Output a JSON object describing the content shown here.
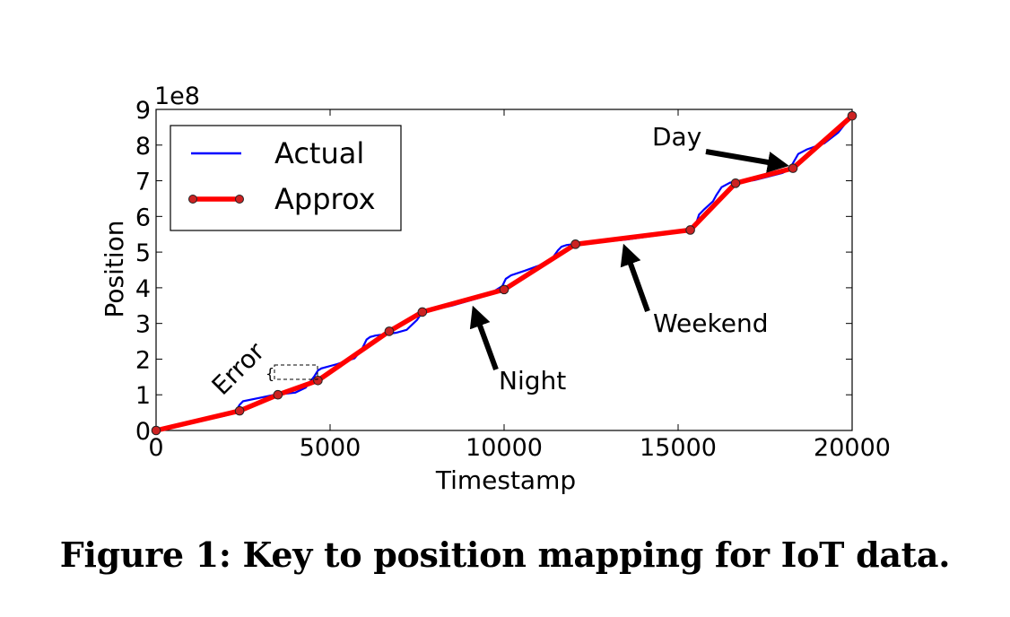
{
  "caption": "Figure 1: Key to position mapping for IoT data.",
  "chart_data": {
    "type": "line",
    "title": "",
    "xlabel": "Timestamp",
    "ylabel": "Position",
    "y_multiplier_label": "1e8",
    "xlim": [
      0,
      20000
    ],
    "ylim": [
      0,
      9
    ],
    "x_ticks": [
      0,
      5000,
      10000,
      15000,
      20000
    ],
    "x_tick_labels": [
      "0",
      "5000",
      "10000",
      "15000",
      "20000"
    ],
    "y_ticks": [
      0,
      1,
      2,
      3,
      4,
      5,
      6,
      7,
      8,
      9
    ],
    "y_tick_labels": [
      "0",
      "1",
      "2",
      "3",
      "4",
      "5",
      "6",
      "7",
      "8",
      "9"
    ],
    "grid": false,
    "legend_position": "top-left",
    "series": [
      {
        "name": "Actual",
        "color": "#0000ff",
        "x": [
          0,
          1000,
          2000,
          2300,
          2400,
          2500,
          3000,
          3400,
          3600,
          4000,
          4300,
          4550,
          4650,
          4750,
          5200,
          5700,
          5900,
          6050,
          6150,
          6300,
          6600,
          6900,
          7200,
          7500,
          7650,
          8500,
          9300,
          9700,
          9950,
          10050,
          10200,
          10600,
          11000,
          11400,
          11550,
          11650,
          11800,
          12000,
          13500,
          15000,
          15300,
          15500,
          15600,
          15750,
          16000,
          16100,
          16250,
          16500,
          16700,
          17200,
          17600,
          18000,
          18200,
          18350,
          18450,
          18700,
          19200,
          19600,
          19800,
          19950,
          20000
        ],
        "y": [
          0,
          0.2,
          0.42,
          0.55,
          0.72,
          0.82,
          0.92,
          1.0,
          1.02,
          1.06,
          1.2,
          1.52,
          1.68,
          1.74,
          1.86,
          2.02,
          2.25,
          2.55,
          2.62,
          2.66,
          2.7,
          2.74,
          2.82,
          3.1,
          3.32,
          3.5,
          3.72,
          3.9,
          4.05,
          4.25,
          4.35,
          4.48,
          4.62,
          4.85,
          5.05,
          5.15,
          5.2,
          5.22,
          5.35,
          5.55,
          5.65,
          5.75,
          6.05,
          6.2,
          6.42,
          6.6,
          6.82,
          6.95,
          6.94,
          7.02,
          7.12,
          7.22,
          7.32,
          7.58,
          7.75,
          7.88,
          8.05,
          8.35,
          8.6,
          8.78,
          8.82
        ]
      },
      {
        "name": "Approx",
        "color": "#ff0000",
        "marker_color": "#cc2222",
        "x": [
          0,
          2400,
          3500,
          4650,
          6700,
          7650,
          10000,
          12050,
          15350,
          16650,
          18300,
          20000
        ],
        "y": [
          0,
          0.55,
          1.0,
          1.4,
          2.78,
          3.32,
          3.95,
          5.22,
          5.62,
          6.93,
          7.35,
          8.82
        ]
      }
    ],
    "annotations": [
      {
        "text": "Error",
        "x": 2300,
        "y": 1.05
      },
      {
        "text": "Night",
        "arrow_from": [
          9900,
          1.6
        ],
        "arrow_to": [
          9250,
          3.35
        ]
      },
      {
        "text": "Weekend",
        "arrow_from": [
          14600,
          3.2
        ],
        "arrow_to": [
          13350,
          5.0
        ]
      },
      {
        "text": "Day",
        "arrow_from": [
          15700,
          7.85
        ],
        "arrow_to": [
          18050,
          7.45
        ]
      }
    ]
  }
}
